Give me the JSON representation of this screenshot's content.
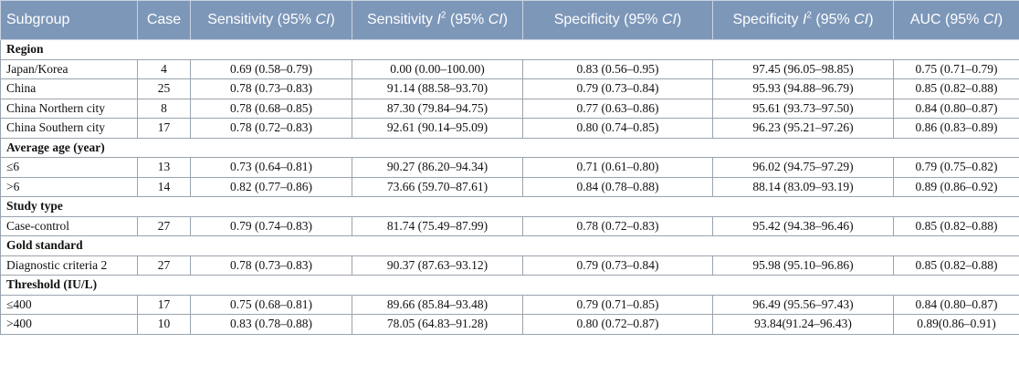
{
  "header": [
    [
      "Subgroup"
    ],
    [
      "Case"
    ],
    [
      "Sensitivity (95% ",
      "CI",
      ")"
    ],
    [
      "Sensitivity ",
      "I",
      "2",
      " (95% ",
      "CI",
      ")"
    ],
    [
      "Specificity (95% ",
      "CI",
      ")"
    ],
    [
      "Specificity ",
      "I",
      "2",
      " (95% ",
      "CI",
      ")"
    ],
    [
      "AUC (95% ",
      "CI",
      ")"
    ]
  ],
  "sections": [
    {
      "title": "Region",
      "rows": [
        [
          "Japan/Korea",
          "4",
          "0.69 (0.58–0.79)",
          "0.00 (0.00–100.00)",
          "0.83 (0.56–0.95)",
          "97.45 (96.05–98.85)",
          "0.75 (0.71–0.79)"
        ],
        [
          "China",
          "25",
          "0.78 (0.73–0.83)",
          "91.14 (88.58–93.70)",
          "0.79 (0.73–0.84)",
          "95.93 (94.88–96.79)",
          "0.85 (0.82–0.88)"
        ],
        [
          "China Northern city",
          "8",
          "0.78 (0.68–0.85)",
          "87.30 (79.84–94.75)",
          "0.77 (0.63–0.86)",
          "95.61 (93.73–97.50)",
          "0.84 (0.80–0.87)"
        ],
        [
          "China Southern city",
          "17",
          "0.78 (0.72–0.83)",
          "92.61 (90.14–95.09)",
          "0.80 (0.74–0.85)",
          "96.23 (95.21–97.26)",
          "0.86 (0.83–0.89)"
        ]
      ]
    },
    {
      "title": "Average age (year)",
      "rows": [
        [
          "≤6",
          "13",
          "0.73 (0.64–0.81)",
          "90.27 (86.20–94.34)",
          "0.71 (0.61–0.80)",
          "96.02 (94.75–97.29)",
          "0.79 (0.75–0.82)"
        ],
        [
          ">6",
          "14",
          "0.82 (0.77–0.86)",
          "73.66 (59.70–87.61)",
          "0.84 (0.78–0.88)",
          "88.14 (83.09–93.19)",
          "0.89 (0.86–0.92)"
        ]
      ]
    },
    {
      "title": "Study type",
      "rows": [
        [
          "Case-control",
          "27",
          "0.79 (0.74–0.83)",
          "81.74 (75.49–87.99)",
          "0.78 (0.72–0.83)",
          "95.42 (94.38–96.46)",
          "0.85 (0.82–0.88)"
        ]
      ]
    },
    {
      "title": "Gold standard",
      "rows": [
        [
          "Diagnostic criteria 2",
          "27",
          "0.78 (0.73–0.83)",
          "90.37 (87.63–93.12)",
          "0.79 (0.73–0.84)",
          "95.98 (95.10–96.86)",
          "0.85 (0.82–0.88)"
        ]
      ]
    },
    {
      "title": "Threshold (IU/L)",
      "rows": [
        [
          "≤400",
          "17",
          "0.75 (0.68–0.81)",
          "89.66 (85.84–93.48)",
          "0.79 (0.71–0.85)",
          "96.49 (95.56–97.43)",
          "0.84 (0.80–0.87)"
        ],
        [
          ">400",
          "10",
          "0.83 (0.78–0.88)",
          "78.05 (64.83–91.28)",
          "0.80 (0.72–0.87)",
          "93.84(91.24–96.43)",
          "0.89(0.86–0.91)"
        ]
      ]
    }
  ]
}
